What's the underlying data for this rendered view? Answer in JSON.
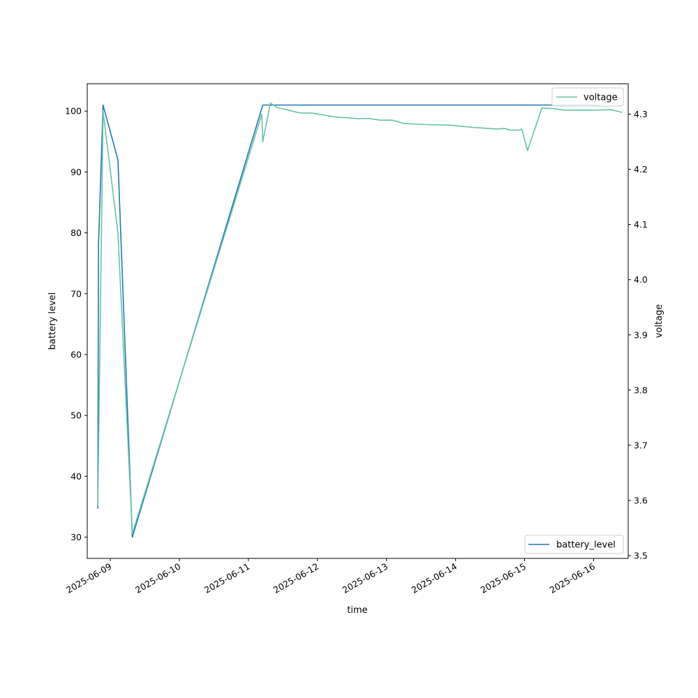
{
  "chart_data": {
    "type": "line",
    "title": "",
    "xlabel": "time",
    "ylabel_left": "battery level",
    "ylabel_right": "voltage",
    "x_range": [
      "2025-06-08T16:00",
      "2025-06-16T12:00"
    ],
    "ylim_left": [
      26.5,
      104.5
    ],
    "ylim_right": [
      3.495,
      4.355
    ],
    "x_ticks": [
      "2025-06-09",
      "2025-06-10",
      "2025-06-11",
      "2025-06-12",
      "2025-06-13",
      "2025-06-14",
      "2025-06-15",
      "2025-06-16"
    ],
    "y_ticks_left": [
      30,
      40,
      50,
      60,
      70,
      80,
      90,
      100
    ],
    "y_ticks_right": [
      3.5,
      3.6,
      3.7,
      3.8,
      3.9,
      4.0,
      4.1,
      4.2,
      4.3
    ],
    "grid": false,
    "series": [
      {
        "name": "battery_level",
        "axis": "left",
        "color": "#1f77b4",
        "legend_position": "lower right",
        "points": [
          [
            "2025-06-08T19:40",
            34.7
          ],
          [
            "2025-06-08T19:55",
            78
          ],
          [
            "2025-06-08T21:30",
            101
          ],
          [
            "2025-06-09T02:40",
            92
          ],
          [
            "2025-06-09T07:40",
            30
          ],
          [
            "2025-06-11T05:00",
            101
          ],
          [
            "2025-06-16T02:00",
            101
          ]
        ]
      },
      {
        "name": "voltage",
        "axis": "right",
        "color": "#66c2a5",
        "legend_position": "upper right",
        "points": [
          [
            "2025-06-08T19:40",
            3.59
          ],
          [
            "2025-06-08T21:30",
            4.305
          ],
          [
            "2025-06-09T02:40",
            4.085
          ],
          [
            "2025-06-09T07:40",
            3.54
          ],
          [
            "2025-06-11T04:40",
            4.3
          ],
          [
            "2025-06-11T05:00",
            4.25
          ],
          [
            "2025-06-11T07:40",
            4.32
          ],
          [
            "2025-06-11T10:00",
            4.312
          ],
          [
            "2025-06-11T18:00",
            4.302
          ],
          [
            "2025-06-11T22:00",
            4.302
          ],
          [
            "2025-06-12T06:00",
            4.295
          ],
          [
            "2025-06-12T14:00",
            4.292
          ],
          [
            "2025-06-12T18:00",
            4.292
          ],
          [
            "2025-06-12T22:00",
            4.289
          ],
          [
            "2025-06-13T02:00",
            4.289
          ],
          [
            "2025-06-13T06:00",
            4.283
          ],
          [
            "2025-06-13T14:00",
            4.281
          ],
          [
            "2025-06-13T22:00",
            4.28
          ],
          [
            "2025-06-14T06:00",
            4.276
          ],
          [
            "2025-06-14T14:00",
            4.273
          ],
          [
            "2025-06-14T17:00",
            4.274
          ],
          [
            "2025-06-14T19:00",
            4.271
          ],
          [
            "2025-06-14T22:00",
            4.271
          ],
          [
            "2025-06-14T23:00",
            4.273
          ],
          [
            "2025-06-15T01:00",
            4.234
          ],
          [
            "2025-06-15T06:00",
            4.311
          ],
          [
            "2025-06-15T10:00",
            4.31
          ],
          [
            "2025-06-15T14:00",
            4.307
          ],
          [
            "2025-06-15T22:00",
            4.307
          ],
          [
            "2025-06-16T06:00",
            4.308
          ],
          [
            "2025-06-16T10:00",
            4.303
          ]
        ]
      }
    ]
  }
}
